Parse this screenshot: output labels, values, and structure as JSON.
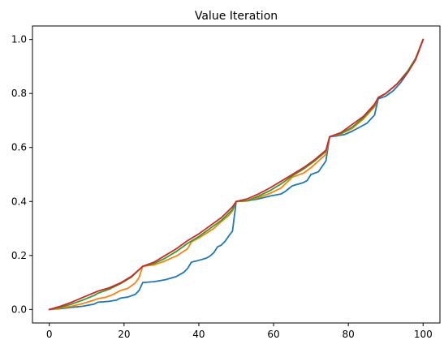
{
  "chart_data": {
    "type": "line",
    "title": "Value Iteration",
    "xlabel": "",
    "ylabel": "",
    "xlim": [
      -4.5,
      104.5
    ],
    "ylim": [
      -0.05,
      1.05
    ],
    "xticks": [
      0,
      20,
      40,
      60,
      80,
      100
    ],
    "yticks": [
      0.0,
      0.2,
      0.4,
      0.6,
      0.8,
      1.0
    ],
    "xtick_labels": [
      "0",
      "20",
      "40",
      "60",
      "80",
      "100"
    ],
    "ytick_labels": [
      "0.0",
      "0.2",
      "0.4",
      "0.6",
      "0.8",
      "1.0"
    ],
    "grid": false,
    "legend": false,
    "series": [
      {
        "color": "#1f77b4",
        "x": [
          0,
          3,
          6,
          9,
          12,
          13,
          16,
          18,
          19,
          21,
          23,
          24,
          25,
          28,
          31,
          34,
          36,
          37,
          38,
          40,
          42,
          43,
          44,
          45,
          46,
          47,
          48,
          49,
          50,
          53,
          56,
          59,
          62,
          63,
          64,
          65,
          66,
          68,
          69,
          70,
          72,
          73,
          74,
          75,
          77,
          79,
          81,
          83,
          85,
          87,
          88,
          90,
          92,
          94,
          96,
          98,
          100
        ],
        "y": [
          0.0,
          0.003,
          0.008,
          0.012,
          0.02,
          0.027,
          0.03,
          0.035,
          0.042,
          0.046,
          0.056,
          0.07,
          0.1,
          0.103,
          0.11,
          0.122,
          0.138,
          0.152,
          0.175,
          0.182,
          0.19,
          0.198,
          0.21,
          0.232,
          0.238,
          0.252,
          0.272,
          0.29,
          0.4,
          0.402,
          0.41,
          0.42,
          0.428,
          0.436,
          0.447,
          0.458,
          0.462,
          0.47,
          0.478,
          0.5,
          0.51,
          0.53,
          0.55,
          0.64,
          0.643,
          0.648,
          0.66,
          0.675,
          0.69,
          0.72,
          0.78,
          0.79,
          0.81,
          0.84,
          0.88,
          0.93,
          1.0
        ]
      },
      {
        "color": "#ff7f0e",
        "x": [
          0,
          3,
          6,
          9,
          12,
          13,
          15,
          17,
          19,
          21,
          23,
          24,
          25,
          28,
          31,
          34,
          37,
          38,
          40,
          42,
          44,
          46,
          48,
          49,
          50,
          53,
          56,
          59,
          62,
          65,
          68,
          70,
          72,
          74,
          75,
          78,
          81,
          84,
          87,
          88,
          90,
          93,
          96,
          98,
          100
        ],
        "y": [
          0.0,
          0.005,
          0.012,
          0.022,
          0.035,
          0.04,
          0.045,
          0.055,
          0.07,
          0.078,
          0.098,
          0.118,
          0.16,
          0.165,
          0.18,
          0.198,
          0.225,
          0.25,
          0.265,
          0.282,
          0.3,
          0.325,
          0.348,
          0.365,
          0.4,
          0.402,
          0.415,
          0.43,
          0.45,
          0.49,
          0.505,
          0.525,
          0.55,
          0.575,
          0.64,
          0.65,
          0.67,
          0.705,
          0.75,
          0.785,
          0.8,
          0.835,
          0.885,
          0.93,
          1.0
        ]
      },
      {
        "color": "#2ca02c",
        "x": [
          0,
          3,
          6,
          9,
          12,
          13,
          16,
          19,
          22,
          25,
          28,
          31,
          34,
          37,
          40,
          43,
          46,
          49,
          50,
          53,
          56,
          59,
          62,
          65,
          68,
          71,
          74,
          75,
          78,
          81,
          84,
          87,
          88,
          90,
          93,
          96,
          98,
          100
        ],
        "y": [
          0.0,
          0.008,
          0.02,
          0.035,
          0.052,
          0.06,
          0.075,
          0.095,
          0.12,
          0.16,
          0.17,
          0.19,
          0.215,
          0.245,
          0.27,
          0.3,
          0.33,
          0.37,
          0.4,
          0.403,
          0.42,
          0.44,
          0.465,
          0.495,
          0.52,
          0.55,
          0.585,
          0.64,
          0.652,
          0.675,
          0.71,
          0.755,
          0.785,
          0.8,
          0.835,
          0.885,
          0.93,
          1.0
        ]
      },
      {
        "color": "#d62728",
        "x": [
          0,
          3,
          6,
          9,
          12,
          13,
          16,
          19,
          22,
          25,
          28,
          31,
          34,
          37,
          40,
          43,
          46,
          49,
          50,
          53,
          56,
          59,
          62,
          65,
          68,
          71,
          74,
          75,
          78,
          81,
          84,
          87,
          88,
          90,
          93,
          96,
          98,
          100
        ],
        "y": [
          0.0,
          0.012,
          0.027,
          0.045,
          0.062,
          0.068,
          0.08,
          0.098,
          0.123,
          0.16,
          0.175,
          0.2,
          0.225,
          0.255,
          0.28,
          0.31,
          0.34,
          0.38,
          0.4,
          0.41,
          0.428,
          0.45,
          0.475,
          0.5,
          0.525,
          0.555,
          0.59,
          0.64,
          0.655,
          0.685,
          0.715,
          0.76,
          0.785,
          0.8,
          0.835,
          0.88,
          0.925,
          1.0
        ]
      }
    ]
  }
}
